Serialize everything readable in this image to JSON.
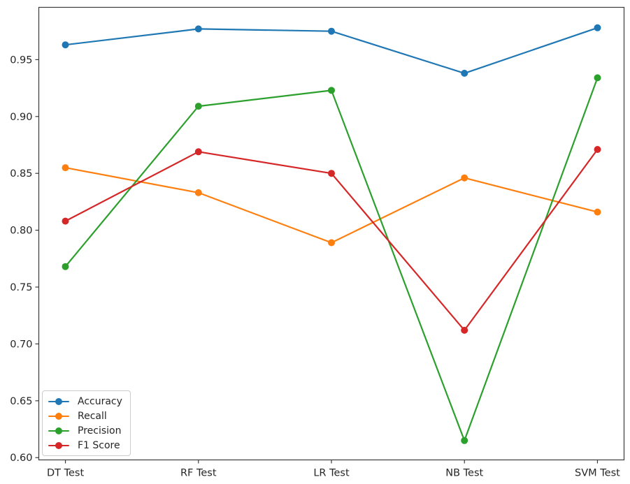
{
  "figure": {
    "background": "#ffffff",
    "axis_text_color": "#262626"
  },
  "chart_data": {
    "type": "line",
    "title": "",
    "xlabel": "",
    "ylabel": "",
    "categories": [
      "DT Test",
      "RF Test",
      "LR Test",
      "NB Test",
      "SVM Test"
    ],
    "series": [
      {
        "name": "Accuracy",
        "color": "#1f77b4",
        "values": [
          0.963,
          0.977,
          0.975,
          0.938,
          0.978
        ]
      },
      {
        "name": "Recall",
        "color": "#ff7f0e",
        "values": [
          0.855,
          0.833,
          0.789,
          0.846,
          0.816
        ]
      },
      {
        "name": "Precision",
        "color": "#2ca02c",
        "values": [
          0.768,
          0.909,
          0.923,
          0.615,
          0.934
        ]
      },
      {
        "name": "F1 Score",
        "color": "#d62728",
        "values": [
          0.808,
          0.869,
          0.85,
          0.712,
          0.871
        ]
      }
    ],
    "ylim": [
      0.598,
      0.996
    ],
    "yticks": [
      0.6,
      0.65,
      0.7,
      0.75,
      0.8,
      0.85,
      0.9,
      0.95
    ],
    "ytick_labels": [
      "0.60",
      "0.65",
      "0.70",
      "0.75",
      "0.80",
      "0.85",
      "0.90",
      "0.95"
    ],
    "grid": false,
    "marker": "circle",
    "legend_position": "lower left"
  }
}
